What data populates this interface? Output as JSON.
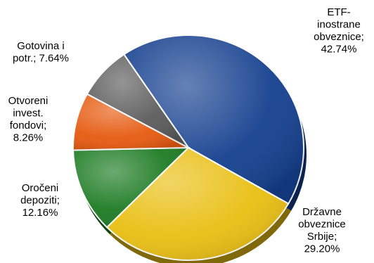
{
  "chart_data": {
    "type": "pie",
    "title": "",
    "slices": [
      {
        "label_lines": [
          "ETF-",
          "inostrane",
          "obveznice;",
          "42.74%"
        ],
        "value": 42.74,
        "color": "#143f8e"
      },
      {
        "label_lines": [
          "Državne",
          "obveznice",
          "Srbije;",
          "29.20%"
        ],
        "value": 29.2,
        "color": "#e9bf12"
      },
      {
        "label_lines": [
          "Oročeni",
          "depoziti;",
          "12.16%"
        ],
        "value": 12.16,
        "color": "#1c7b22"
      },
      {
        "label_lines": [
          "Otvoreni",
          "invest.",
          "fondovi;",
          "8.26%"
        ],
        "value": 8.26,
        "color": "#e65a0f"
      },
      {
        "label_lines": [
          "Gotovina i",
          "potr.; 7.64%"
        ],
        "value": 7.64,
        "color": "#5b5b5b"
      }
    ]
  }
}
